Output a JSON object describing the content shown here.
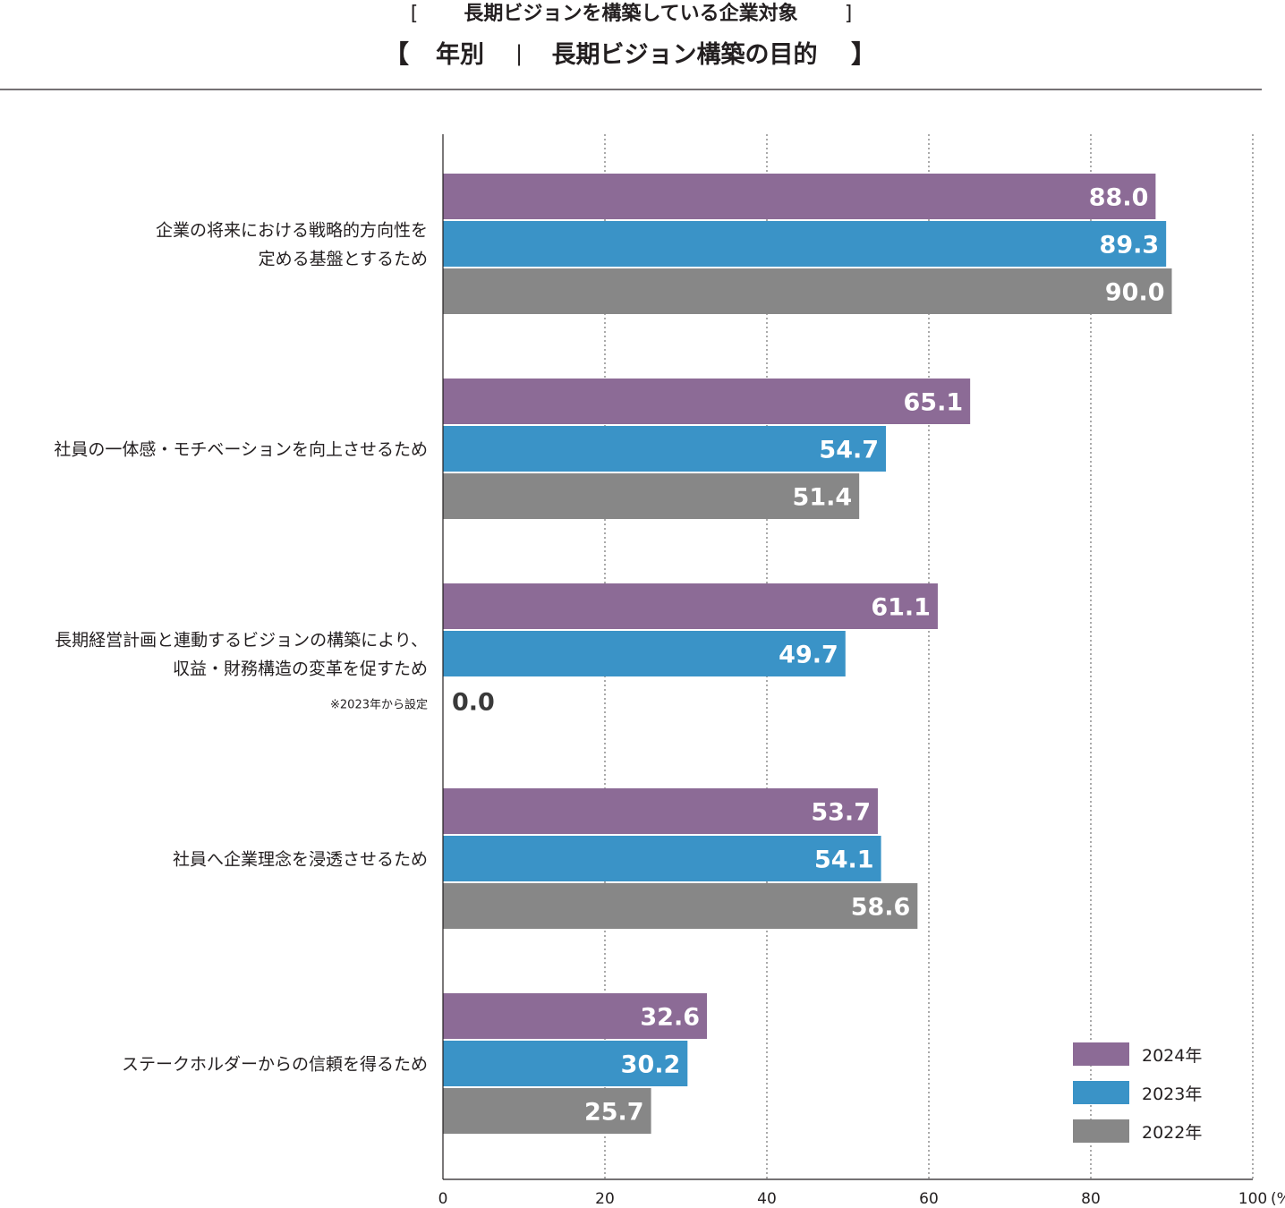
{
  "header": {
    "subtitle": "長期ビジョンを構築している企業対象",
    "title_left": "年別",
    "title_right": "長期ビジョン構築の目的",
    "open_square": "[",
    "close_square": "]",
    "open_lenticular": "【",
    "close_lenticular": "】",
    "separator": "|"
  },
  "colors": {
    "2024": "#8c6b96",
    "2023": "#3a93c7",
    "2022": "#878787"
  },
  "chart_data": {
    "type": "bar",
    "orientation": "horizontal",
    "title": "年別 | 長期ビジョン構築の目的",
    "subtitle": "長期ビジョンを構築している企業対象",
    "xlim": [
      0,
      100
    ],
    "x_unit": "(%)",
    "x_ticks": [
      "0",
      "20",
      "40",
      "60",
      "80",
      "100"
    ],
    "grid": "vertical dotted",
    "legend_position": "bottom-right",
    "categories": [
      {
        "lines": [
          "企業の将来における戦略的方向性を",
          "定める基盤とするため"
        ],
        "note": ""
      },
      {
        "lines": [
          "社員の一体感・モチベーションを向上させるため"
        ],
        "note": ""
      },
      {
        "lines": [
          "長期経営計画と連動するビジョンの構築により、",
          "収益・財務構造の変革を促すため"
        ],
        "note": "※2023年から設定"
      },
      {
        "lines": [
          "社員へ企業理念を浸透させるため"
        ],
        "note": ""
      },
      {
        "lines": [
          "ステークホルダーからの信頼を得るため"
        ],
        "note": ""
      }
    ],
    "series": [
      {
        "name": "2024年",
        "color_key": "2024",
        "values": [
          88.0,
          65.1,
          61.1,
          53.7,
          32.6
        ],
        "labels": [
          "88.0",
          "65.1",
          "61.1",
          "53.7",
          "32.6"
        ]
      },
      {
        "name": "2023年",
        "color_key": "2023",
        "values": [
          89.3,
          54.7,
          49.7,
          54.1,
          30.2
        ],
        "labels": [
          "89.3",
          "54.7",
          "49.7",
          "54.1",
          "30.2"
        ]
      },
      {
        "name": "2022年",
        "color_key": "2022",
        "values": [
          90.0,
          51.4,
          0.0,
          58.6,
          25.7
        ],
        "labels": [
          "90.0",
          "51.4",
          "0.0",
          "58.6",
          "25.7"
        ]
      }
    ]
  }
}
